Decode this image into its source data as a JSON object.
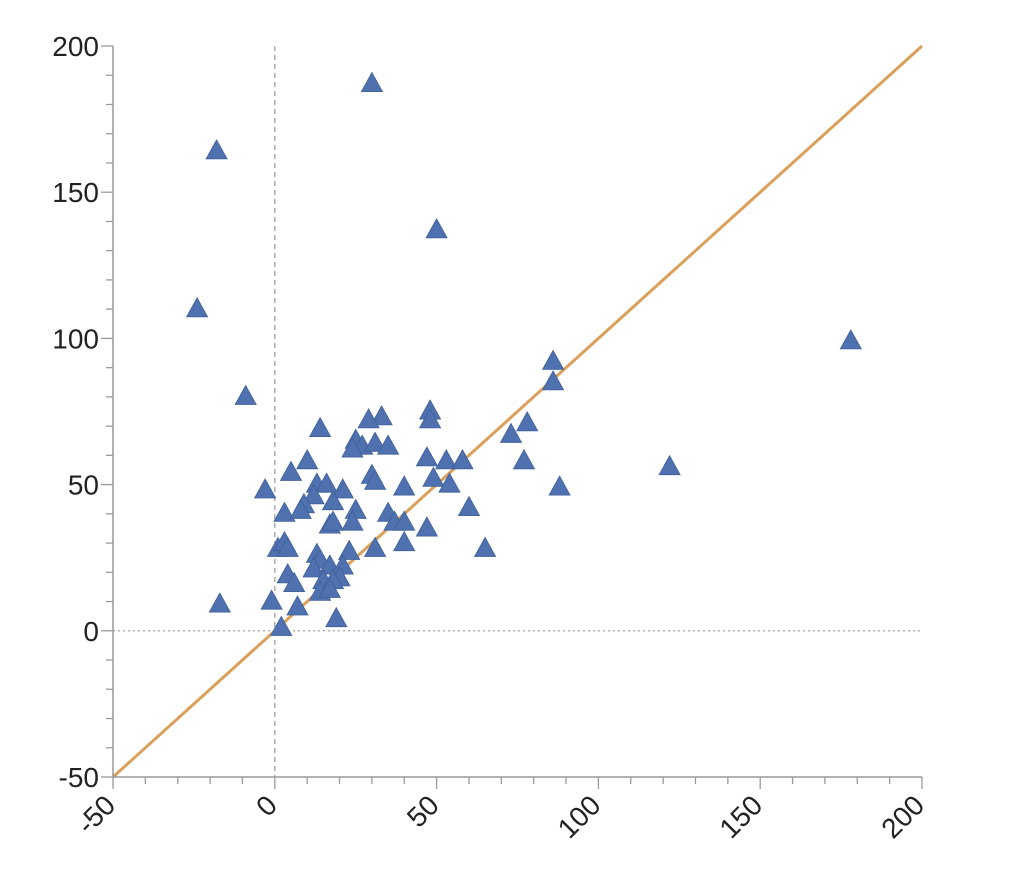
{
  "chart_data": {
    "type": "scatter",
    "title": "",
    "xlabel": "",
    "ylabel": "",
    "xlim": [
      -50,
      200
    ],
    "ylim": [
      -50,
      200
    ],
    "x_ticks": [
      -50,
      0,
      50,
      100,
      150,
      200
    ],
    "y_ticks": [
      -50,
      0,
      50,
      100,
      150,
      200
    ],
    "x_tick_labels": [
      "-50",
      "0",
      "50",
      "100",
      "150",
      "200"
    ],
    "y_tick_labels": [
      "-50",
      "0",
      "50",
      "100",
      "150",
      "200"
    ],
    "grid": false,
    "reference_lines": [
      {
        "kind": "vertical",
        "at": 0,
        "style": "dashed",
        "color": "#999999"
      },
      {
        "kind": "horizontal",
        "at": 0,
        "style": "dotted",
        "color": "#999999"
      },
      {
        "kind": "identity",
        "from": [
          -50,
          -50
        ],
        "to": [
          200,
          200
        ],
        "color": "#d9a15b"
      }
    ],
    "series": [
      {
        "marker": "triangle",
        "color": "#4f71b0",
        "points": [
          [
            30,
            187
          ],
          [
            -18,
            164
          ],
          [
            50,
            137
          ],
          [
            -24,
            110
          ],
          [
            178,
            99
          ],
          [
            -9,
            80
          ],
          [
            86,
            92
          ],
          [
            86,
            85
          ],
          [
            48,
            75
          ],
          [
            48,
            72
          ],
          [
            33,
            73
          ],
          [
            29,
            72
          ],
          [
            14,
            69
          ],
          [
            25,
            65
          ],
          [
            27,
            63
          ],
          [
            31,
            64
          ],
          [
            35,
            63
          ],
          [
            24,
            62
          ],
          [
            73,
            67
          ],
          [
            78,
            71
          ],
          [
            47,
            59
          ],
          [
            53,
            58
          ],
          [
            58,
            58
          ],
          [
            77,
            58
          ],
          [
            122,
            56
          ],
          [
            10,
            58
          ],
          [
            5,
            54
          ],
          [
            30,
            53
          ],
          [
            49,
            52
          ],
          [
            31,
            51
          ],
          [
            54,
            50
          ],
          [
            88,
            49
          ],
          [
            40,
            49
          ],
          [
            13,
            50
          ],
          [
            16,
            50
          ],
          [
            21,
            48
          ],
          [
            -3,
            48
          ],
          [
            12,
            46
          ],
          [
            18,
            44
          ],
          [
            60,
            42
          ],
          [
            3,
            40
          ],
          [
            9,
            43
          ],
          [
            8,
            41
          ],
          [
            25,
            41
          ],
          [
            24,
            37
          ],
          [
            35,
            40
          ],
          [
            37,
            37
          ],
          [
            40,
            37
          ],
          [
            17,
            36
          ],
          [
            47,
            35
          ],
          [
            18,
            37
          ],
          [
            40,
            30
          ],
          [
            65,
            28
          ],
          [
            31,
            28
          ],
          [
            23,
            27
          ],
          [
            1,
            28
          ],
          [
            3,
            30
          ],
          [
            4,
            28
          ],
          [
            13,
            26
          ],
          [
            14,
            24
          ],
          [
            12,
            21
          ],
          [
            17,
            22
          ],
          [
            21,
            22
          ],
          [
            20,
            18
          ],
          [
            4,
            19
          ],
          [
            6,
            16
          ],
          [
            15,
            17
          ],
          [
            18,
            17
          ],
          [
            14,
            13
          ],
          [
            17,
            14
          ],
          [
            7,
            8
          ],
          [
            -1,
            10
          ],
          [
            -17,
            9
          ],
          [
            19,
            4
          ],
          [
            2,
            1
          ]
        ]
      }
    ]
  }
}
